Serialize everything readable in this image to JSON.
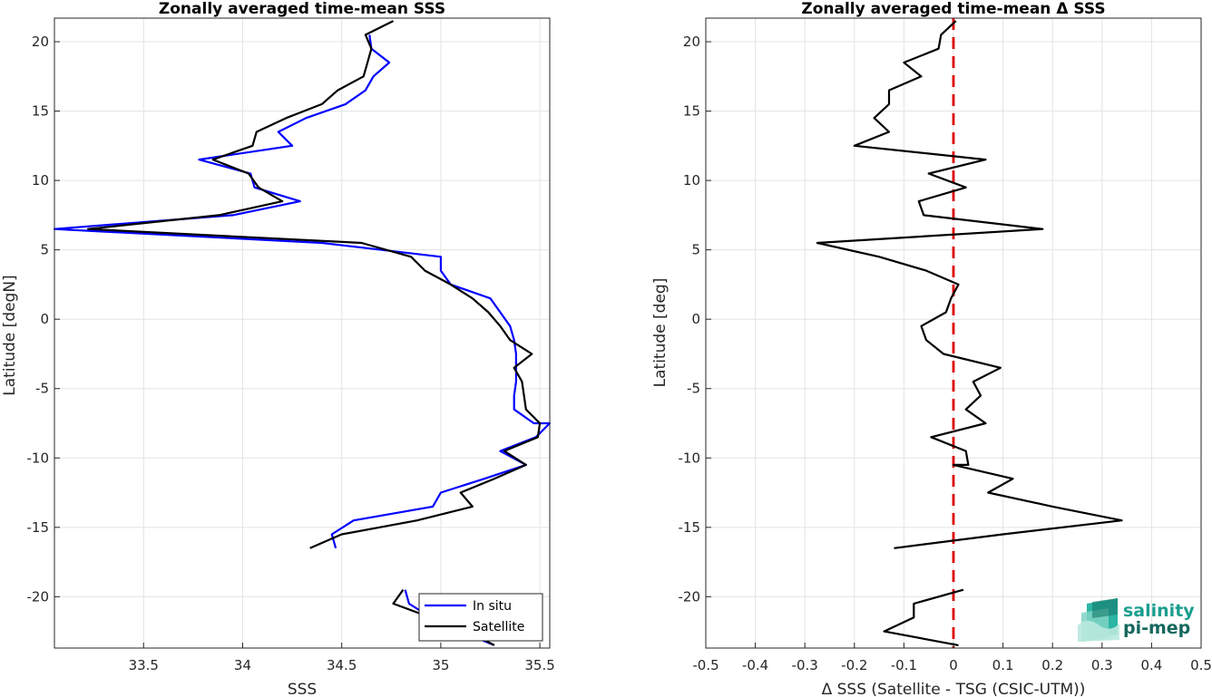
{
  "chart_data": [
    {
      "type": "line",
      "title": "Zonally averaged time-mean SSS",
      "xlabel": "SSS",
      "ylabel": "Latitude [degN]",
      "xlim": [
        33.05,
        35.55
      ],
      "ylim": [
        -23.7,
        21.7
      ],
      "xticks": [
        33.5,
        34,
        34.5,
        35,
        35.5
      ],
      "xtick_labels": [
        "33.5",
        "34",
        "34.5",
        "35",
        "35.5"
      ],
      "yticks": [
        -20,
        -15,
        -10,
        -5,
        0,
        5,
        10,
        15,
        20
      ],
      "ytick_labels": [
        "-20",
        "-15",
        "-10",
        "-5",
        "0",
        "5",
        "10",
        "15",
        "20"
      ],
      "grid": true,
      "legend": {
        "placement": "bottom-right",
        "entries": [
          "In situ",
          "Satellite"
        ]
      },
      "series": [
        {
          "name": "In situ",
          "color": "#0000ff",
          "segments": [
            [
              [
                34.64,
                20.5
              ],
              [
                34.65,
                19.5
              ],
              [
                34.74,
                18.5
              ],
              [
                34.66,
                17.5
              ],
              [
                34.62,
                16.5
              ],
              [
                34.52,
                15.5
              ],
              [
                34.32,
                14.5
              ],
              [
                34.18,
                13.5
              ],
              [
                34.25,
                12.5
              ],
              [
                33.78,
                11.5
              ],
              [
                34.04,
                10.5
              ],
              [
                34.06,
                9.5
              ],
              [
                34.29,
                8.5
              ],
              [
                33.95,
                7.5
              ],
              [
                33.05,
                6.5
              ],
              [
                34.4,
                5.5
              ],
              [
                35.0,
                4.5
              ],
              [
                35.0,
                3.5
              ],
              [
                35.05,
                2.5
              ],
              [
                35.25,
                1.5
              ],
              [
                35.3,
                0.5
              ],
              [
                35.35,
                -0.5
              ],
              [
                35.37,
                -1.5
              ],
              [
                35.38,
                -2.5
              ],
              [
                35.38,
                -3.5
              ],
              [
                35.38,
                -4.5
              ],
              [
                35.37,
                -5.5
              ],
              [
                35.37,
                -6.5
              ],
              [
                35.47,
                -7.5
              ],
              [
                35.55,
                -7.5
              ],
              [
                35.48,
                -8.5
              ],
              [
                35.3,
                -9.5
              ],
              [
                35.43,
                -10.5
              ],
              [
                35.22,
                -11.5
              ],
              [
                35.0,
                -12.5
              ],
              [
                34.96,
                -13.5
              ],
              [
                34.56,
                -14.5
              ],
              [
                34.45,
                -15.5
              ],
              [
                34.47,
                -16.5
              ]
            ],
            [
              [
                34.82,
                -19.5
              ],
              [
                34.84,
                -20.5
              ],
              [
                34.95,
                -21.5
              ],
              [
                35.1,
                -22.5
              ],
              [
                35.27,
                -23.5
              ]
            ]
          ]
        },
        {
          "name": "Satellite",
          "color": "#000000",
          "segments": [
            [
              [
                34.76,
                21.5
              ],
              [
                34.62,
                20.5
              ],
              [
                34.65,
                19.5
              ],
              [
                34.63,
                18.5
              ],
              [
                34.61,
                17.5
              ],
              [
                34.48,
                16.5
              ],
              [
                34.4,
                15.5
              ],
              [
                34.22,
                14.5
              ],
              [
                34.07,
                13.5
              ],
              [
                34.05,
                12.5
              ],
              [
                33.85,
                11.5
              ],
              [
                34.03,
                10.5
              ],
              [
                34.08,
                9.5
              ],
              [
                34.2,
                8.5
              ],
              [
                33.88,
                7.5
              ],
              [
                33.22,
                6.5
              ],
              [
                34.6,
                5.5
              ],
              [
                34.85,
                4.5
              ],
              [
                34.92,
                3.5
              ],
              [
                35.05,
                2.5
              ],
              [
                35.16,
                1.5
              ],
              [
                35.24,
                0.5
              ],
              [
                35.3,
                -0.5
              ],
              [
                35.35,
                -1.5
              ],
              [
                35.46,
                -2.5
              ],
              [
                35.37,
                -3.5
              ],
              [
                35.41,
                -4.5
              ],
              [
                35.42,
                -5.5
              ],
              [
                35.43,
                -6.5
              ],
              [
                35.5,
                -7.5
              ],
              [
                35.49,
                -8.5
              ],
              [
                35.32,
                -9.5
              ],
              [
                35.43,
                -10.5
              ],
              [
                35.27,
                -11.5
              ],
              [
                35.1,
                -12.5
              ],
              [
                35.16,
                -13.5
              ],
              [
                34.88,
                -14.5
              ],
              [
                34.5,
                -15.5
              ],
              [
                34.34,
                -16.5
              ]
            ],
            [
              [
                34.81,
                -19.5
              ],
              [
                34.76,
                -20.5
              ],
              [
                34.95,
                -21.5
              ],
              [
                35.14,
                -22.5
              ],
              [
                35.27,
                -23.5
              ]
            ]
          ]
        }
      ]
    },
    {
      "type": "line",
      "title": "Zonally averaged time-mean Δ SSS",
      "xlabel": "Δ SSS (Satellite - TSG (CSIC-UTM))",
      "ylabel": "Latitude [deg]",
      "xlim": [
        -0.5,
        0.5
      ],
      "ylim": [
        -23.7,
        21.7
      ],
      "xticks": [
        -0.5,
        -0.4,
        -0.3,
        -0.2,
        -0.1,
        0,
        0.1,
        0.2,
        0.3,
        0.4,
        0.5
      ],
      "xtick_labels": [
        "-0.5",
        "-0.4",
        "-0.3",
        "-0.2",
        "-0.1",
        "0",
        "0.1",
        "0.2",
        "0.3",
        "0.4",
        "0.5"
      ],
      "yticks": [
        -20,
        -15,
        -10,
        -5,
        0,
        5,
        10,
        15,
        20
      ],
      "ytick_labels": [
        "-20",
        "-15",
        "-10",
        "-5",
        "0",
        "5",
        "10",
        "15",
        "20"
      ],
      "grid": true,
      "reference_line": {
        "x": 0,
        "color": "#dd0000",
        "style": "dashed"
      },
      "series": [
        {
          "color": "#000000",
          "segments": [
            [
              [
                0.005,
                21.5
              ],
              [
                -0.025,
                20.5
              ],
              [
                -0.03,
                19.5
              ],
              [
                -0.1,
                18.5
              ],
              [
                -0.065,
                17.5
              ],
              [
                -0.13,
                16.5
              ],
              [
                -0.13,
                15.5
              ],
              [
                -0.16,
                14.5
              ],
              [
                -0.13,
                13.5
              ],
              [
                -0.2,
                12.5
              ],
              [
                0.065,
                11.5
              ],
              [
                -0.05,
                10.5
              ],
              [
                0.025,
                9.5
              ],
              [
                -0.07,
                8.5
              ],
              [
                -0.06,
                7.5
              ],
              [
                0.18,
                6.5
              ],
              [
                -0.275,
                5.5
              ],
              [
                -0.15,
                4.5
              ],
              [
                -0.055,
                3.5
              ],
              [
                0.01,
                2.5
              ],
              [
                -0.005,
                1.5
              ],
              [
                -0.015,
                0.5
              ],
              [
                -0.065,
                -0.5
              ],
              [
                -0.055,
                -1.5
              ],
              [
                -0.02,
                -2.5
              ],
              [
                0.095,
                -3.5
              ],
              [
                0.04,
                -4.5
              ],
              [
                0.055,
                -5.5
              ],
              [
                0.025,
                -6.5
              ],
              [
                0.065,
                -7.5
              ],
              [
                -0.045,
                -8.5
              ],
              [
                0.025,
                -9.5
              ],
              [
                0.03,
                -10.5
              ],
              [
                0.0,
                -10.5
              ],
              [
                0.12,
                -11.5
              ],
              [
                0.07,
                -12.5
              ],
              [
                0.2,
                -13.5
              ],
              [
                0.34,
                -14.5
              ],
              [
                0.1,
                -15.5
              ],
              [
                -0.12,
                -16.5
              ]
            ],
            [
              [
                0.02,
                -19.5
              ],
              [
                -0.08,
                -20.5
              ],
              [
                -0.08,
                -21.5
              ],
              [
                -0.14,
                -22.5
              ],
              [
                0.01,
                -23.5
              ]
            ]
          ]
        }
      ]
    }
  ],
  "logo": {
    "word1": "salinity",
    "word2": "pi-mep"
  }
}
